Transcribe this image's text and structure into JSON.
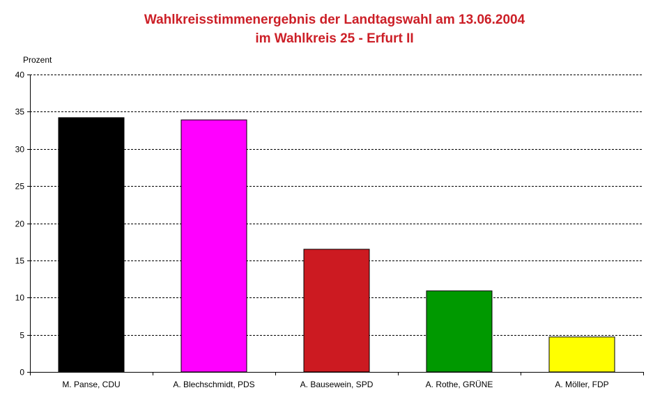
{
  "chart_data": {
    "type": "bar",
    "title": "Wahlkreisstimmenergebnis der Landtagswahl am 13.06.2004",
    "subtitle": "im Wahlkreis 25 - Erfurt II",
    "xlabel": "",
    "ylabel": "Prozent",
    "ylim": [
      0,
      40
    ],
    "yticks": [
      0,
      5,
      10,
      15,
      20,
      25,
      30,
      35,
      40
    ],
    "grid": true,
    "categories": [
      "M. Panse, CDU",
      "A. Blechschmidt, PDS",
      "A. Bausewein, SPD",
      "A. Rothe, GRÜNE",
      "A. Möller, FDP"
    ],
    "values": [
      34.2,
      33.9,
      16.5,
      10.9,
      4.7
    ],
    "colors": [
      "#000000",
      "#ff00ff",
      "#cc1a21",
      "#009900",
      "#ffff00"
    ],
    "title_color": "#cc1f27"
  }
}
